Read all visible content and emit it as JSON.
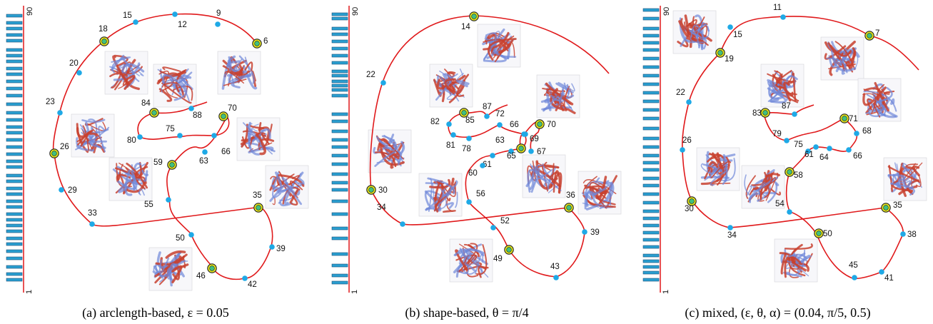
{
  "axis": {
    "top_label": "90",
    "bottom_label": "1"
  },
  "panels": [
    {
      "id": "a",
      "caption": "(a) arclength-based, ε = 0.05",
      "key_points": [
        "18",
        "6",
        "84",
        "70",
        "26",
        "59",
        "35",
        "46"
      ],
      "points": [
        "18",
        "15",
        "12",
        "9",
        "6",
        "20",
        "23",
        "26",
        "29",
        "33",
        "84",
        "88",
        "80",
        "75",
        "70",
        "66",
        "63",
        "59",
        "55",
        "35",
        "50",
        "39",
        "46",
        "42"
      ]
    },
    {
      "id": "b",
      "caption": "(b) shape-based, θ = π/4",
      "key_points": [
        "14",
        "85",
        "70",
        "65",
        "30",
        "36",
        "49"
      ],
      "points": [
        "14",
        "22",
        "30",
        "34",
        "85",
        "87",
        "82",
        "81",
        "78",
        "72",
        "70",
        "69",
        "66",
        "67",
        "63",
        "65",
        "61",
        "60",
        "56",
        "52",
        "36",
        "39",
        "49",
        "43"
      ]
    },
    {
      "id": "c",
      "caption": "(c) mixed, (ε, θ, α) = (0.04, π/5, 0.5)",
      "key_points": [
        "7",
        "19",
        "83",
        "71",
        "58",
        "30",
        "35",
        "50"
      ],
      "points": [
        "15",
        "11",
        "7",
        "19",
        "22",
        "26",
        "30",
        "34",
        "83",
        "87",
        "79",
        "75",
        "71",
        "68",
        "61",
        "64",
        "66",
        "58",
        "54",
        "35",
        "50",
        "38",
        "45",
        "41"
      ]
    }
  ],
  "colors": {
    "curve": "#e0191b",
    "point": "#1ea9e6",
    "key_ring": "#e1e41c",
    "key_center": "#3fbf7f",
    "tick": "#2a9fd0",
    "tick_outline": "#1a4f78"
  }
}
